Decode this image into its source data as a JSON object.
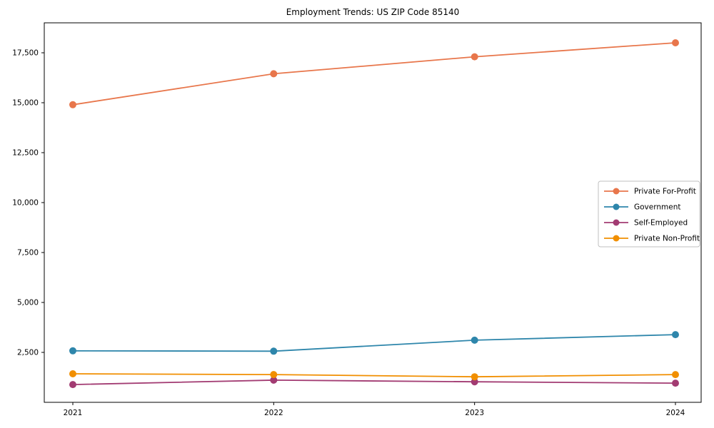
{
  "page": {
    "background_color": "#ffffff",
    "frame_color": "#000000",
    "legend_border_color": "#bfbfbf"
  },
  "chart_data": {
    "type": "line",
    "title": "Employment Trends: US ZIP Code 85140",
    "xlabel": "",
    "ylabel": "",
    "grid": false,
    "marker": "circle",
    "x": [
      2021,
      2022,
      2023,
      2024
    ],
    "x_tick_labels": [
      "2021",
      "2022",
      "2023",
      "2024"
    ],
    "ylim": [
      0,
      19000
    ],
    "yticks": [
      2500,
      5000,
      7500,
      10000,
      12500,
      15000,
      17500
    ],
    "ytick_labels": [
      "2,500",
      "5,000",
      "7,500",
      "10,000",
      "12,500",
      "15,000",
      "17,500"
    ],
    "series": [
      {
        "name": "Private For-Profit",
        "color": "#E8764B",
        "values": [
          14900,
          16450,
          17300,
          18000
        ]
      },
      {
        "name": "Government",
        "color": "#2E86AB",
        "values": [
          2580,
          2560,
          3110,
          3390
        ]
      },
      {
        "name": "Self-Employed",
        "color": "#A23B72",
        "values": [
          890,
          1110,
          1030,
          960
        ]
      },
      {
        "name": "Private Non-Profit",
        "color": "#F18F01",
        "values": [
          1430,
          1390,
          1280,
          1390
        ]
      }
    ],
    "legend": {
      "position": "center-right",
      "entries": [
        "Private For-Profit",
        "Government",
        "Self-Employed",
        "Private Non-Profit"
      ]
    }
  }
}
